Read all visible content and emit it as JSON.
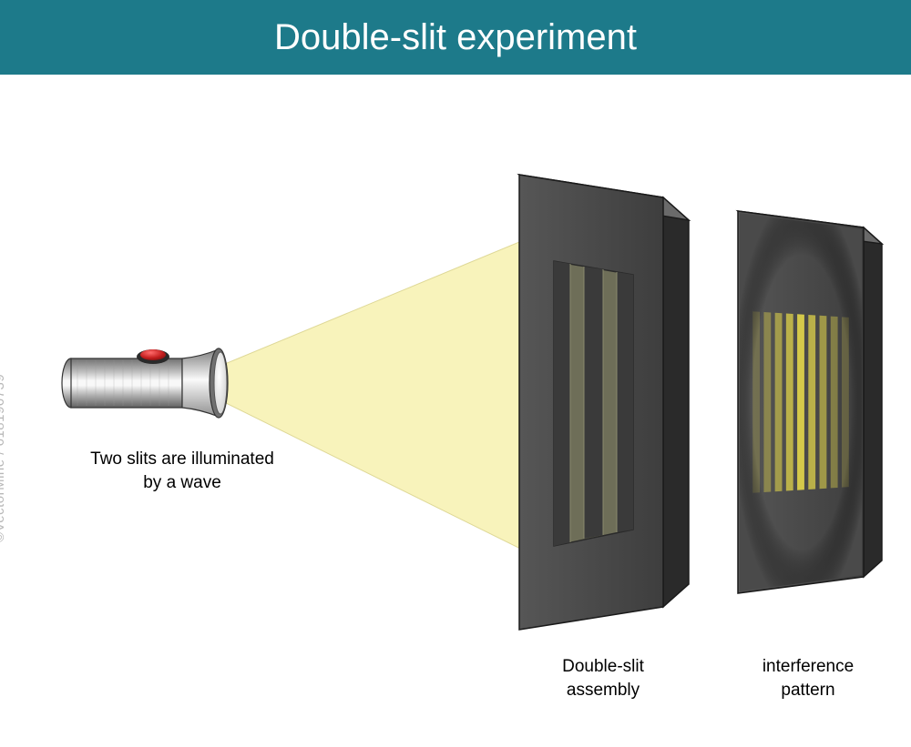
{
  "title": {
    "text": "Double-slit experiment",
    "background_color": "#1d7a8a",
    "text_color": "#ffffff",
    "fontsize": 40
  },
  "labels": {
    "flashlight": "Two slits are illuminated\nby a wave",
    "slit_panel": "Double-slit\nassembly",
    "screen_panel": "interference\npattern"
  },
  "watermark": "©VectorMine / 618196739",
  "diagram": {
    "type": "infographic",
    "background_color": "#ffffff",
    "light_beam": {
      "fill": "#f7f0a8",
      "opacity": 0.75,
      "stroke": "#d6ce7a"
    },
    "flashlight": {
      "body_gradient": [
        "#808080",
        "#e8e8e8",
        "#ffffff",
        "#c0c0c0",
        "#707070"
      ],
      "head_gradient": [
        "#909090",
        "#fafafa",
        "#b0b0b0"
      ],
      "lens_gradient": [
        "#f5f5f5",
        "#d0d0d0"
      ],
      "button_color": "#c41e1e",
      "button_highlight": "#ff6b6b",
      "outline": "#333333"
    },
    "slit_panel": {
      "face_color": "#4a4a4a",
      "side_color": "#2a2a2a",
      "top_color": "#6a6a6a",
      "slit_area_color": "#6e6e58",
      "slit_bar_color": "#3a3a3a",
      "outline": "#1a1a1a"
    },
    "screen_panel": {
      "face_color": "#4a4a4a",
      "side_color": "#2a2a2a",
      "top_color": "#6a6a6a",
      "outline": "#1a1a1a",
      "fringe_color": "#d4c94a",
      "fringe_dark": "#3a3a3a",
      "fringe_count": 9
    }
  }
}
